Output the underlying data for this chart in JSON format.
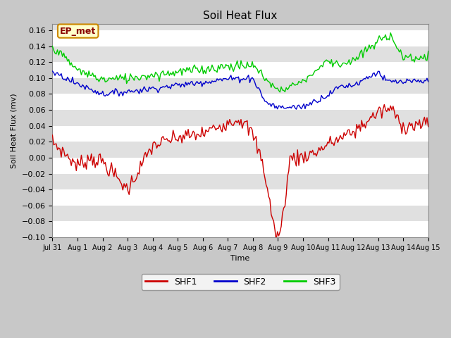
{
  "title": "Soil Heat Flux",
  "xlabel": "Time",
  "ylabel": "Soil Heat Flux (mv)",
  "ylim": [
    -0.1,
    0.168
  ],
  "yticks": [
    -0.1,
    -0.08,
    -0.06,
    -0.04,
    -0.02,
    0.0,
    0.02,
    0.04,
    0.06,
    0.08,
    0.1,
    0.12,
    0.14,
    0.16
  ],
  "bg_color": "#c8c8c8",
  "plot_bg_color": "#e0e0e0",
  "grid_color_light": "#d4d4d4",
  "grid_color_dark": "#c0c0c0",
  "shf1_color": "#cc0000",
  "shf2_color": "#0000cc",
  "shf3_color": "#00cc00",
  "annotation_text": "EP_met",
  "annotation_bg": "#ffffcc",
  "annotation_border": "#cc8800",
  "x_tick_labels": [
    "Jul 31",
    "Aug 1",
    "Aug 2",
    "Aug 3",
    "Aug 4",
    "Aug 5",
    "Aug 6",
    "Aug 7",
    "Aug 8",
    "Aug 9",
    "Aug 10",
    "Aug 11",
    "Aug 12",
    "Aug 13",
    "Aug 14",
    "Aug 15"
  ],
  "legend_labels": [
    "SHF1",
    "SHF2",
    "SHF3"
  ],
  "title_fontsize": 11,
  "label_fontsize": 8,
  "tick_fontsize": 8,
  "legend_fontsize": 9
}
